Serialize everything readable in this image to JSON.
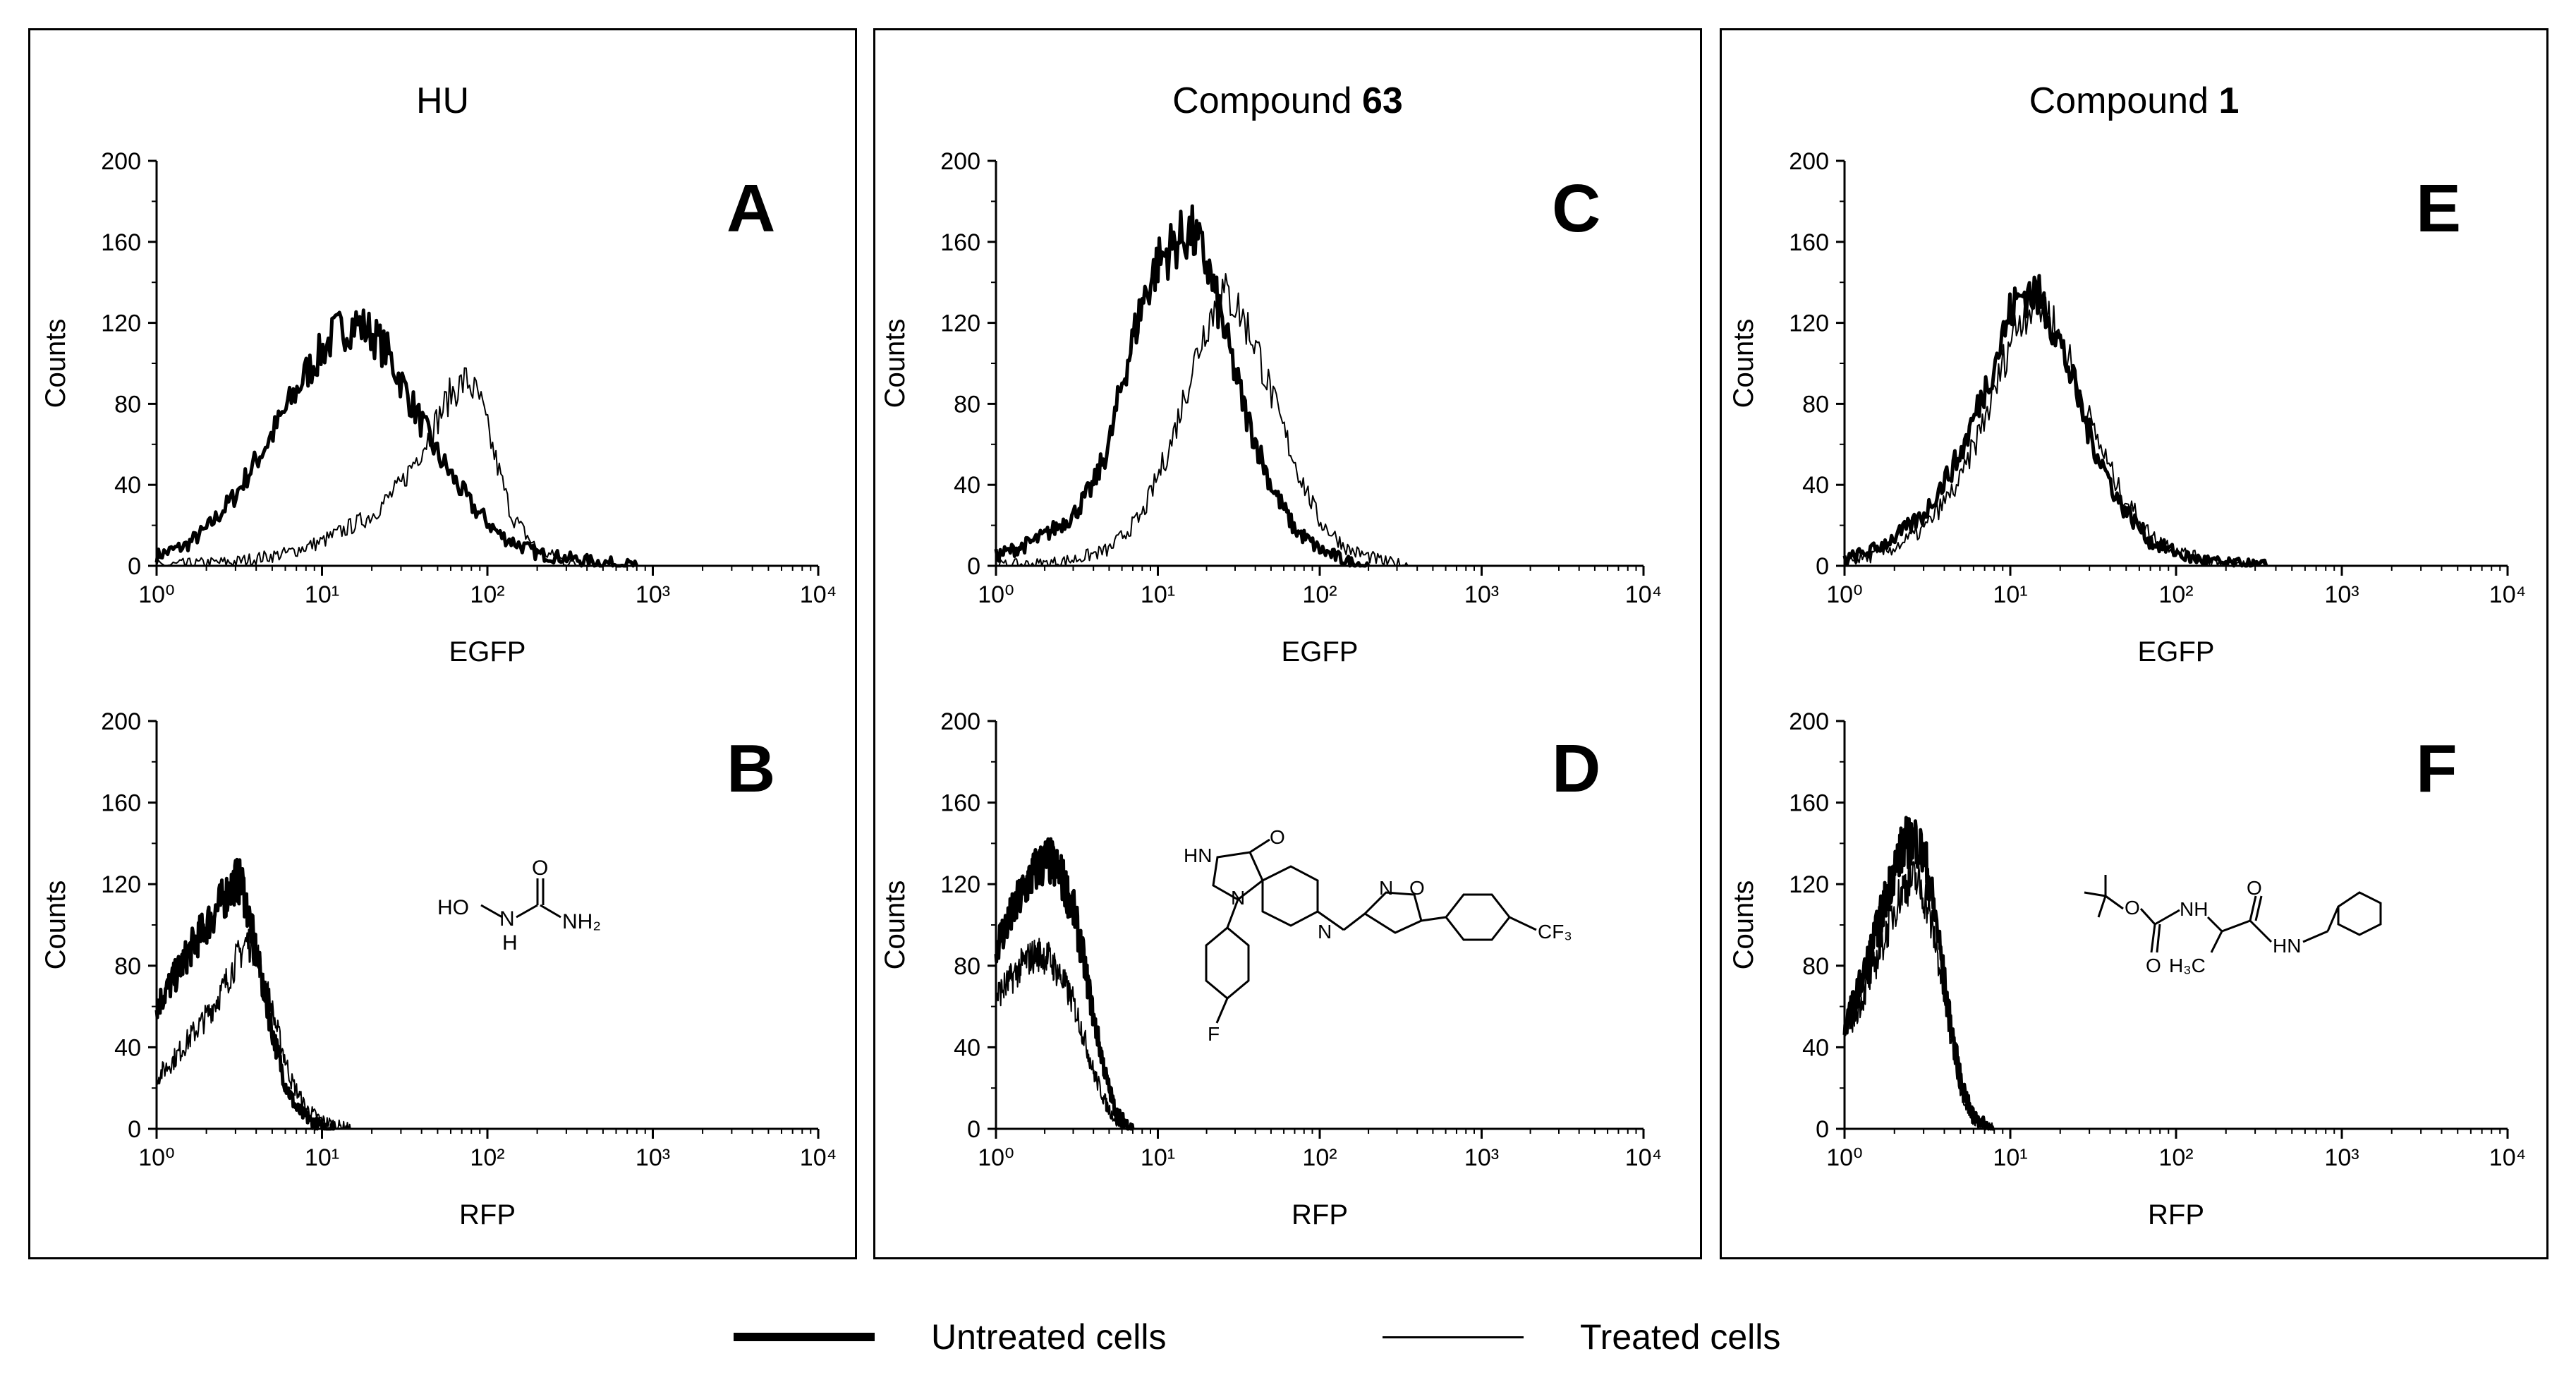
{
  "figure": {
    "groups": [
      {
        "title_pre": "HU",
        "title_bold": ""
      },
      {
        "title_pre": "Compound ",
        "title_bold": "63"
      },
      {
        "title_pre": "Compound ",
        "title_bold": "1"
      }
    ],
    "legend": [
      {
        "label": "Untreated cells",
        "line": "thick"
      },
      {
        "label": "Treated cells",
        "line": "thin"
      }
    ]
  },
  "chart_data": [
    {
      "panel": "A",
      "type": "area",
      "xlabel": "EGFP",
      "ylabel": "Counts",
      "xscale": "log",
      "xlim": [
        1,
        10000
      ],
      "ylim": [
        0,
        200
      ],
      "xticks": [
        "10⁰",
        "10¹",
        "10²",
        "10³",
        "10⁴"
      ],
      "yticks": [
        "0",
        "40",
        "80",
        "120",
        "160",
        "200"
      ],
      "series": [
        {
          "name": "Untreated cells",
          "color": "#000000",
          "x": [
            1,
            1.5,
            2,
            3,
            5,
            8,
            12,
            16,
            20,
            25,
            35,
            50,
            80,
            120,
            200,
            350,
            600,
            800
          ],
          "y": [
            5,
            10,
            18,
            35,
            65,
            95,
            115,
            120,
            115,
            105,
            80,
            55,
            30,
            15,
            6,
            3,
            1,
            0
          ]
        },
        {
          "name": "Treated cells",
          "color": "#000000",
          "x": [
            1,
            3,
            6,
            10,
            20,
            30,
            45,
            60,
            75,
            90,
            110,
            140,
            200,
            300,
            400
          ],
          "y": [
            0,
            2,
            6,
            12,
            25,
            40,
            65,
            85,
            92,
            82,
            55,
            25,
            8,
            2,
            0
          ]
        }
      ]
    },
    {
      "panel": "B",
      "type": "area",
      "xlabel": "RFP",
      "ylabel": "Counts",
      "xscale": "log",
      "xlim": [
        1,
        10000
      ],
      "ylim": [
        0,
        200
      ],
      "xticks": [
        "10⁰",
        "10¹",
        "10²",
        "10³",
        "10⁴"
      ],
      "yticks": [
        "0",
        "40",
        "80",
        "120",
        "160",
        "200"
      ],
      "series": [
        {
          "name": "Untreated cells",
          "color": "#000000",
          "x": [
            1,
            1.3,
            1.6,
            2,
            2.5,
            3,
            3.3,
            3.7,
            4.2,
            5,
            6,
            7,
            8.5,
            10,
            12
          ],
          "y": [
            60,
            75,
            88,
            100,
            112,
            122,
            120,
            100,
            78,
            48,
            22,
            10,
            4,
            1,
            0
          ]
        },
        {
          "name": "Treated cells",
          "color": "#000000",
          "x": [
            1,
            1.3,
            1.6,
            2,
            2.5,
            3,
            3.5,
            4,
            4.5,
            5.5,
            6.5,
            8,
            10,
            13,
            15
          ],
          "y": [
            25,
            35,
            45,
            55,
            68,
            82,
            92,
            88,
            72,
            45,
            24,
            10,
            4,
            1,
            0
          ]
        }
      ]
    },
    {
      "panel": "C",
      "type": "area",
      "xlabel": "EGFP",
      "ylabel": "Counts",
      "xscale": "log",
      "xlim": [
        1,
        10000
      ],
      "ylim": [
        0,
        200
      ],
      "xticks": [
        "10⁰",
        "10¹",
        "10²",
        "10³",
        "10⁴"
      ],
      "yticks": [
        "0",
        "40",
        "80",
        "120",
        "160",
        "200"
      ],
      "series": [
        {
          "name": "Untreated cells",
          "color": "#000000",
          "x": [
            1,
            1.5,
            2,
            3,
            4,
            5,
            6,
            8,
            10,
            13,
            16,
            20,
            25,
            35,
            50,
            70,
            100,
            150,
            200
          ],
          "y": [
            5,
            10,
            15,
            25,
            40,
            60,
            90,
            130,
            150,
            160,
            165,
            150,
            120,
            75,
            40,
            18,
            8,
            2,
            0
          ]
        },
        {
          "name": "Treated cells",
          "color": "#000000",
          "x": [
            1,
            2,
            3,
            5,
            8,
            12,
            16,
            20,
            25,
            30,
            40,
            55,
            75,
            100,
            150,
            250,
            350
          ],
          "y": [
            0,
            1,
            3,
            8,
            25,
            60,
            95,
            120,
            135,
            130,
            110,
            75,
            45,
            22,
            8,
            2,
            0
          ]
        }
      ]
    },
    {
      "panel": "D",
      "type": "area",
      "xlabel": "RFP",
      "ylabel": "Counts",
      "xscale": "log",
      "xlim": [
        1,
        10000
      ],
      "ylim": [
        0,
        200
      ],
      "xticks": [
        "10⁰",
        "10¹",
        "10²",
        "10³",
        "10⁴"
      ],
      "yticks": [
        "0",
        "40",
        "80",
        "120",
        "160",
        "200"
      ],
      "series": [
        {
          "name": "Untreated cells",
          "color": "#000000",
          "x": [
            1,
            1.2,
            1.5,
            1.8,
            2.1,
            2.5,
            3,
            3.5,
            4,
            4.8,
            5.5,
            6.5,
            7
          ],
          "y": [
            90,
            102,
            118,
            128,
            132,
            125,
            108,
            82,
            55,
            25,
            8,
            2,
            0
          ]
        },
        {
          "name": "Treated cells",
          "color": "#000000",
          "x": [
            1,
            1.2,
            1.5,
            1.8,
            2.1,
            2.5,
            3,
            3.5,
            4,
            4.8,
            5.5,
            6.5,
            7
          ],
          "y": [
            65,
            72,
            82,
            86,
            84,
            75,
            62,
            45,
            28,
            12,
            4,
            1,
            0
          ]
        }
      ]
    },
    {
      "panel": "E",
      "type": "area",
      "xlabel": "EGFP",
      "ylabel": "Counts",
      "xscale": "log",
      "xlim": [
        1,
        10000
      ],
      "ylim": [
        0,
        200
      ],
      "xticks": [
        "10⁰",
        "10¹",
        "10²",
        "10³",
        "10⁴"
      ],
      "yticks": [
        "0",
        "40",
        "80",
        "120",
        "160",
        "200"
      ],
      "series": [
        {
          "name": "Untreated cells",
          "color": "#000000",
          "x": [
            1,
            1.5,
            2,
            3,
            5,
            8,
            10,
            12,
            14,
            17,
            22,
            30,
            45,
            70,
            120,
            200,
            350
          ],
          "y": [
            3,
            8,
            14,
            25,
            55,
            100,
            125,
            135,
            135,
            125,
            100,
            65,
            32,
            12,
            4,
            1,
            0
          ]
        },
        {
          "name": "Treated cells",
          "color": "#000000",
          "x": [
            1,
            1.5,
            2,
            3,
            5,
            8,
            10,
            12,
            14,
            17,
            22,
            30,
            45,
            70,
            120,
            200,
            350
          ],
          "y": [
            2,
            5,
            9,
            18,
            42,
            85,
            112,
            125,
            130,
            125,
            105,
            72,
            38,
            15,
            5,
            1,
            0
          ]
        }
      ]
    },
    {
      "panel": "F",
      "type": "area",
      "xlabel": "RFP",
      "ylabel": "Counts",
      "xscale": "log",
      "xlim": [
        1,
        10000
      ],
      "ylim": [
        0,
        200
      ],
      "xticks": [
        "10⁰",
        "10¹",
        "10²",
        "10³",
        "10⁴"
      ],
      "yticks": [
        "0",
        "40",
        "80",
        "120",
        "160",
        "200"
      ],
      "series": [
        {
          "name": "Untreated cells",
          "color": "#000000",
          "x": [
            1,
            1.3,
            1.6,
            2,
            2.3,
            2.7,
            3.1,
            3.6,
            4.2,
            5,
            5.8,
            7,
            8
          ],
          "y": [
            50,
            75,
            100,
            128,
            140,
            142,
            130,
            100,
            60,
            25,
            8,
            2,
            0
          ]
        },
        {
          "name": "Treated cells",
          "color": "#000000",
          "x": [
            1,
            1.3,
            1.6,
            2,
            2.3,
            2.7,
            3.1,
            3.6,
            4.2,
            5,
            5.8,
            7,
            8
          ],
          "y": [
            45,
            65,
            85,
            108,
            120,
            122,
            112,
            88,
            52,
            20,
            6,
            1,
            0
          ]
        }
      ]
    }
  ]
}
